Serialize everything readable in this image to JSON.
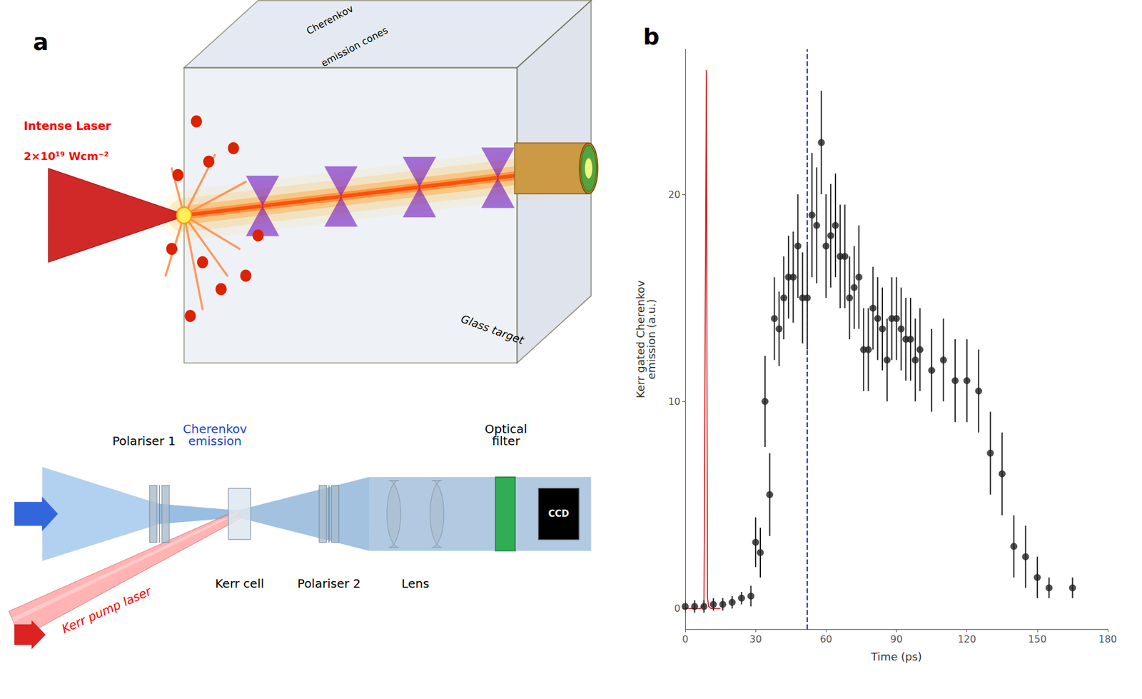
{
  "chart_data": [
    {
      "type": "diagram",
      "title": "a",
      "annotations": [
        "Intense Laser",
        "2×10¹⁹ Wcm⁻²",
        "Cherenkov",
        "emission cones",
        "Glass target",
        "CCD",
        "Polariser 1",
        "Cherenkov\nemission",
        "Kerr cell",
        "Polariser 2",
        "Lens",
        "Optical\nfilter",
        "Kerr pump laser"
      ]
    },
    {
      "type": "scatter",
      "title": "b",
      "xlabel": "Time (ps)",
      "ylabel": "Kerr gated Cherenkov\nemission (a.u.)",
      "xlim": [
        0,
        180
      ],
      "ylim": [
        -1,
        27
      ],
      "xticks": [
        0,
        30,
        60,
        90,
        120,
        150,
        180
      ],
      "yticks": [
        0,
        10,
        20
      ],
      "grid": false,
      "series": [
        {
          "type": "line",
          "color": "#cc0000",
          "line_style": "solid",
          "x": [
            0,
            6.5,
            8.0,
            9.0,
            9.5,
            10.0,
            11.0,
            12.0,
            15.0
          ],
          "values": [
            0,
            0.0,
            0.2,
            26.0,
            0.5,
            0.1,
            0.0,
            0.0,
            0.0
          ]
        },
        {
          "type": "vline",
          "color": "#2222cc",
          "line_style": "dashed",
          "x": [
            52
          ]
        },
        {
          "type": "scatter",
          "color": "#222222",
          "marker": "circle",
          "x": [
            0,
            4,
            8,
            12,
            16,
            20,
            24,
            28,
            30,
            32,
            34,
            36,
            38,
            40,
            42,
            44,
            46,
            48,
            50,
            52,
            54,
            56,
            58,
            60,
            62,
            64,
            66,
            68,
            70,
            72,
            74,
            76,
            78,
            80,
            82,
            84,
            86,
            88,
            90,
            92,
            94,
            96,
            98,
            100,
            105,
            110,
            115,
            120,
            125,
            130,
            135,
            140,
            145,
            150,
            155,
            165
          ],
          "values": [
            0.1,
            0.1,
            0.1,
            0.2,
            0.2,
            0.3,
            0.5,
            0.6,
            3.2,
            2.7,
            10.0,
            5.5,
            14.0,
            13.5,
            15.0,
            16.0,
            16.0,
            17.5,
            15.0,
            15.0,
            19.0,
            18.5,
            22.5,
            17.5,
            18.0,
            18.5,
            17.0,
            17.0,
            15.0,
            15.5,
            16.0,
            12.5,
            12.5,
            14.5,
            14.0,
            13.5,
            12.0,
            14.0,
            14.0,
            13.5,
            13.0,
            13.0,
            12.0,
            12.5,
            11.5,
            12.0,
            11.0,
            11.0,
            10.5,
            7.5,
            6.5,
            3.0,
            2.5,
            1.5,
            1.0,
            1.0
          ],
          "yerr": [
            0.3,
            0.3,
            0.3,
            0.3,
            0.3,
            0.3,
            0.3,
            0.5,
            1.2,
            1.2,
            2.2,
            2.0,
            2.0,
            1.8,
            2.0,
            2.0,
            2.2,
            2.5,
            2.2,
            2.5,
            3.0,
            2.8,
            2.5,
            2.5,
            2.5,
            2.5,
            2.5,
            2.5,
            2.0,
            2.0,
            2.5,
            2.0,
            2.0,
            2.0,
            2.0,
            2.0,
            2.0,
            2.0,
            2.0,
            2.0,
            2.0,
            2.0,
            2.0,
            2.0,
            2.0,
            2.0,
            2.0,
            2.0,
            2.0,
            2.0,
            2.0,
            1.5,
            1.5,
            1.0,
            0.5,
            0.5
          ]
        }
      ]
    }
  ]
}
